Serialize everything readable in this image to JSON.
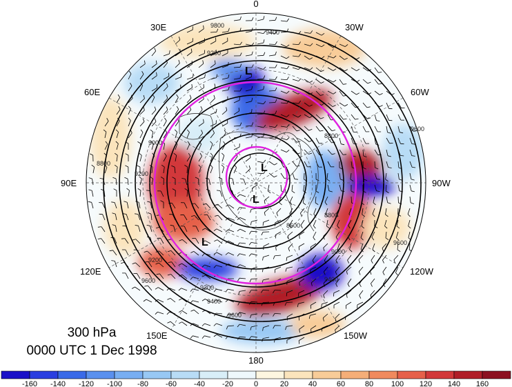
{
  "map": {
    "projection": "north-polar-stereographic",
    "longitude_labels": [
      {
        "text": "0",
        "lon": 0
      },
      {
        "text": "30W",
        "lon": -30
      },
      {
        "text": "60W",
        "lon": -60
      },
      {
        "text": "90W",
        "lon": -90
      },
      {
        "text": "120W",
        "lon": -120
      },
      {
        "text": "150W",
        "lon": -150
      },
      {
        "text": "180",
        "lon": 180
      },
      {
        "text": "150E",
        "lon": 150
      },
      {
        "text": "120E",
        "lon": 120
      },
      {
        "text": "90E",
        "lon": 90
      },
      {
        "text": "60E",
        "lon": 60
      },
      {
        "text": "30E",
        "lon": 30
      }
    ],
    "contour_labels": [
      "9200",
      "9400",
      "9600",
      "9800",
      "9000",
      "8800",
      "8600"
    ],
    "low_center_label": "L",
    "colors": {
      "magenta_circle": "#e020e0",
      "contour": "#000000",
      "positive": "#c01818",
      "negative": "#1020c8"
    }
  },
  "caption": {
    "line1": "300 hPa",
    "line2": "0000 UTC 1 Dec 1998"
  },
  "colorbar": {
    "ticks": [
      "-160",
      "-140",
      "-120",
      "-100",
      "-80",
      "-60",
      "-40",
      "-20",
      "0",
      "20",
      "40",
      "60",
      "80",
      "100",
      "120",
      "140",
      "160"
    ],
    "colors": [
      "#1a10c8",
      "#2a3ee0",
      "#3a6ae8",
      "#5a90ee",
      "#78aef2",
      "#98c8f4",
      "#b8dcf6",
      "#d8eef8",
      "#eef8fc",
      "#fdf6e0",
      "#fbe4bc",
      "#f8cc98",
      "#f5ae78",
      "#f08a5e",
      "#e6604a",
      "#d2383a",
      "#b01e28",
      "#8c1020"
    ]
  }
}
